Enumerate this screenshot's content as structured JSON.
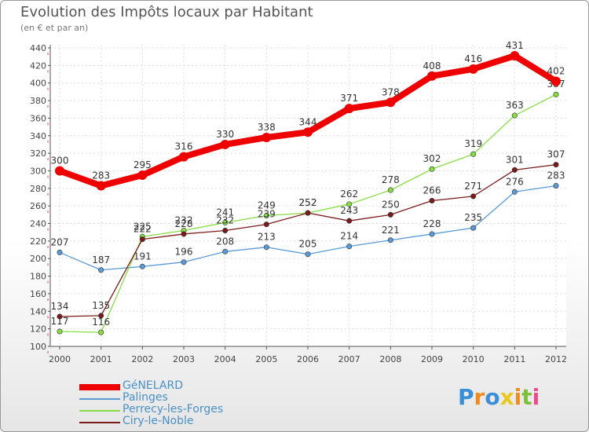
{
  "chart_data": {
    "type": "line",
    "title": "Evolution des Impôts locaux par Habitant",
    "subtitle": "(en € et par an)",
    "x": [
      "2000",
      "2001",
      "2002",
      "2003",
      "2004",
      "2005",
      "2006",
      "2007",
      "2008",
      "2009",
      "2010",
      "2011",
      "2012"
    ],
    "yticks": [
      100,
      120,
      140,
      160,
      180,
      200,
      220,
      240,
      260,
      280,
      300,
      320,
      340,
      360,
      380,
      400,
      420,
      440
    ],
    "ylim": [
      100,
      440
    ],
    "series": [
      {
        "name": "GéNELARD",
        "color": "#ee0000",
        "values": [
          300,
          283,
          295,
          316,
          330,
          338,
          344,
          371,
          378,
          408,
          416,
          431,
          402
        ]
      },
      {
        "name": "Palinges",
        "color": "#5b9bd5",
        "values": [
          207,
          187,
          191,
          196,
          208,
          213,
          205,
          214,
          221,
          228,
          235,
          276,
          283
        ]
      },
      {
        "name": "Perrecy-les-Forges",
        "color": "#88dd44",
        "values": [
          117,
          116,
          225,
          232,
          241,
          249,
          252,
          262,
          278,
          302,
          319,
          363,
          387
        ]
      },
      {
        "name": "Ciry-le-Noble",
        "color": "#7a1a1a",
        "values": [
          134,
          135,
          222,
          228,
          232,
          239,
          252,
          243,
          250,
          266,
          271,
          301,
          307
        ]
      }
    ]
  },
  "brand": {
    "text": "Proxiti"
  }
}
